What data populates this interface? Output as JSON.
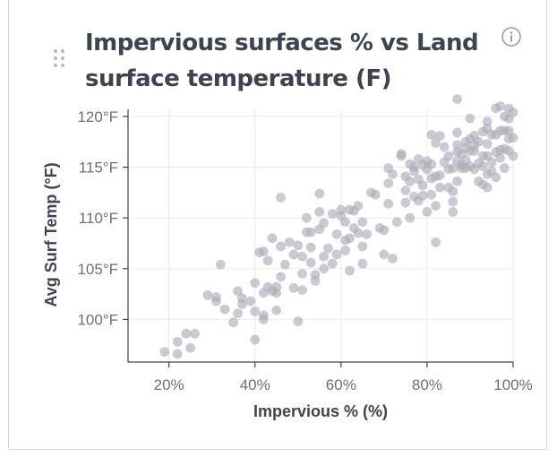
{
  "card": {
    "title": "Impervious surfaces % vs Land surface temperature (F)",
    "icons": {
      "drag": "drag-handle-icon",
      "info": "info-icon"
    }
  },
  "colors": {
    "point": "#a9abb6",
    "axis": "#3d4350",
    "grid": "#ebebeb",
    "tick_text": "#6b6f7a"
  },
  "chart_data": {
    "type": "scatter",
    "title": "Impervious surfaces % vs Land surface temperature (F)",
    "xlabel": "Impervious % (%)",
    "ylabel": "Avg Surf Temp (°F)",
    "xlim": [
      0.105,
      1.0
    ],
    "ylim": [
      95.8,
      120.7
    ],
    "xticks": [
      0.2,
      0.4,
      0.6,
      0.8,
      1.0
    ],
    "xtick_labels": [
      "20%",
      "40%",
      "60%",
      "80%",
      "100%"
    ],
    "yticks": [
      100,
      105,
      110,
      115,
      120
    ],
    "ytick_labels": [
      "100°F",
      "105°F",
      "110°F",
      "115°F",
      "120°F"
    ],
    "grid": true,
    "points": [
      [
        0.19,
        96.8
      ],
      [
        0.22,
        96.6
      ],
      [
        0.22,
        97.8
      ],
      [
        0.24,
        98.6
      ],
      [
        0.25,
        97.2
      ],
      [
        0.26,
        98.6
      ],
      [
        0.29,
        102.4
      ],
      [
        0.31,
        102.2
      ],
      [
        0.31,
        101.8
      ],
      [
        0.32,
        105.4
      ],
      [
        0.33,
        101.0
      ],
      [
        0.35,
        99.7
      ],
      [
        0.36,
        100.6
      ],
      [
        0.36,
        102.8
      ],
      [
        0.37,
        102.1
      ],
      [
        0.37,
        101.5
      ],
      [
        0.39,
        101.8
      ],
      [
        0.4,
        98.0
      ],
      [
        0.4,
        100.8
      ],
      [
        0.4,
        103.6
      ],
      [
        0.41,
        106.6
      ],
      [
        0.42,
        106.7
      ],
      [
        0.42,
        100.4
      ],
      [
        0.42,
        100.0
      ],
      [
        0.42,
        102.6
      ],
      [
        0.43,
        105.8
      ],
      [
        0.43,
        103.2
      ],
      [
        0.44,
        108.0
      ],
      [
        0.44,
        102.8
      ],
      [
        0.45,
        103.2
      ],
      [
        0.45,
        102.6
      ],
      [
        0.45,
        100.9
      ],
      [
        0.46,
        112.0
      ],
      [
        0.46,
        104.2
      ],
      [
        0.46,
        107.2
      ],
      [
        0.47,
        105.4
      ],
      [
        0.48,
        107.6
      ],
      [
        0.49,
        106.4
      ],
      [
        0.49,
        103.1
      ],
      [
        0.5,
        99.8
      ],
      [
        0.5,
        107.3
      ],
      [
        0.51,
        106.2
      ],
      [
        0.51,
        104.5
      ],
      [
        0.51,
        102.9
      ],
      [
        0.52,
        108.6
      ],
      [
        0.52,
        110.0
      ],
      [
        0.53,
        108.6
      ],
      [
        0.53,
        107.1
      ],
      [
        0.53,
        105.6
      ],
      [
        0.54,
        103.8
      ],
      [
        0.54,
        104.4
      ],
      [
        0.55,
        112.4
      ],
      [
        0.55,
        110.6
      ],
      [
        0.55,
        108.9
      ],
      [
        0.56,
        106.2
      ],
      [
        0.56,
        105.0
      ],
      [
        0.56,
        109.5
      ],
      [
        0.57,
        107.0
      ],
      [
        0.58,
        110.4
      ],
      [
        0.58,
        105.5
      ],
      [
        0.59,
        106.4
      ],
      [
        0.59,
        108.4
      ],
      [
        0.6,
        110.8
      ],
      [
        0.6,
        110.2
      ],
      [
        0.61,
        109.6
      ],
      [
        0.61,
        107.8
      ],
      [
        0.61,
        106.8
      ],
      [
        0.62,
        110.8
      ],
      [
        0.62,
        104.8
      ],
      [
        0.62,
        108.0
      ],
      [
        0.63,
        110.7
      ],
      [
        0.63,
        109.0
      ],
      [
        0.64,
        111.2
      ],
      [
        0.64,
        108.5
      ],
      [
        0.65,
        109.6
      ],
      [
        0.65,
        107.2
      ],
      [
        0.65,
        105.5
      ],
      [
        0.66,
        108.4
      ],
      [
        0.67,
        112.5
      ],
      [
        0.68,
        112.3
      ],
      [
        0.69,
        109.0
      ],
      [
        0.7,
        108.8
      ],
      [
        0.7,
        106.4
      ],
      [
        0.71,
        113.4
      ],
      [
        0.71,
        111.4
      ],
      [
        0.71,
        114.9
      ],
      [
        0.72,
        106.0
      ],
      [
        0.72,
        114.3
      ],
      [
        0.73,
        109.6
      ],
      [
        0.74,
        116.3
      ],
      [
        0.74,
        116.1
      ],
      [
        0.75,
        112.7
      ],
      [
        0.75,
        114.1
      ],
      [
        0.75,
        111.5
      ],
      [
        0.76,
        115.3
      ],
      [
        0.76,
        113.6
      ],
      [
        0.76,
        110.0
      ],
      [
        0.77,
        112.1
      ],
      [
        0.77,
        115.0
      ],
      [
        0.77,
        114.6
      ],
      [
        0.78,
        115.8
      ],
      [
        0.78,
        113.8
      ],
      [
        0.78,
        111.7
      ],
      [
        0.79,
        115.2
      ],
      [
        0.79,
        113.2
      ],
      [
        0.79,
        112.2
      ],
      [
        0.8,
        115.6
      ],
      [
        0.8,
        114.8
      ],
      [
        0.8,
        110.6
      ],
      [
        0.81,
        118.2
      ],
      [
        0.81,
        115.3
      ],
      [
        0.81,
        113.9
      ],
      [
        0.81,
        112.3
      ],
      [
        0.82,
        117.4
      ],
      [
        0.82,
        114.1
      ],
      [
        0.82,
        111.2
      ],
      [
        0.82,
        107.6
      ],
      [
        0.83,
        118.1
      ],
      [
        0.83,
        114.2
      ],
      [
        0.83,
        113.0
      ],
      [
        0.84,
        115.5
      ],
      [
        0.84,
        117.0
      ],
      [
        0.85,
        116.1
      ],
      [
        0.85,
        113.0
      ],
      [
        0.85,
        114.8
      ],
      [
        0.86,
        114.9
      ],
      [
        0.86,
        112.6
      ],
      [
        0.86,
        111.6
      ],
      [
        0.86,
        110.6
      ],
      [
        0.87,
        121.7
      ],
      [
        0.87,
        118.4
      ],
      [
        0.87,
        117.2
      ],
      [
        0.87,
        116.5
      ],
      [
        0.87,
        115.6
      ],
      [
        0.87,
        113.6
      ],
      [
        0.88,
        116.3
      ],
      [
        0.88,
        115.2
      ],
      [
        0.88,
        114.9
      ],
      [
        0.89,
        116.9
      ],
      [
        0.89,
        115.7
      ],
      [
        0.89,
        114.9
      ],
      [
        0.89,
        117.5
      ],
      [
        0.9,
        119.8
      ],
      [
        0.9,
        117.8
      ],
      [
        0.9,
        116.6
      ],
      [
        0.9,
        115.1
      ],
      [
        0.91,
        118.1
      ],
      [
        0.91,
        117.2
      ],
      [
        0.91,
        116.6
      ],
      [
        0.91,
        114.8
      ],
      [
        0.92,
        117.5
      ],
      [
        0.92,
        115.4
      ],
      [
        0.92,
        113.6
      ],
      [
        0.93,
        118.5
      ],
      [
        0.93,
        116.1
      ],
      [
        0.93,
        115.1
      ],
      [
        0.93,
        113.3
      ],
      [
        0.94,
        119.5
      ],
      [
        0.94,
        118.8
      ],
      [
        0.94,
        117.3
      ],
      [
        0.94,
        116.1
      ],
      [
        0.94,
        114.3
      ],
      [
        0.94,
        113.0
      ],
      [
        0.95,
        118.2
      ],
      [
        0.95,
        115.5
      ],
      [
        0.95,
        114.6
      ],
      [
        0.96,
        120.8
      ],
      [
        0.96,
        118.2
      ],
      [
        0.96,
        116.5
      ],
      [
        0.96,
        114.0
      ],
      [
        0.97,
        121.0
      ],
      [
        0.97,
        118.6
      ],
      [
        0.97,
        116.7
      ],
      [
        0.97,
        115.9
      ],
      [
        0.98,
        120.0
      ],
      [
        0.98,
        118.6
      ],
      [
        0.98,
        116.8
      ],
      [
        0.98,
        114.9
      ],
      [
        0.99,
        120.8
      ],
      [
        0.99,
        119.8
      ],
      [
        0.99,
        118.6
      ],
      [
        0.99,
        117.8
      ],
      [
        0.99,
        116.6
      ],
      [
        1.0,
        120.4
      ],
      [
        1.0,
        117.9
      ],
      [
        1.0,
        116.1
      ]
    ]
  }
}
